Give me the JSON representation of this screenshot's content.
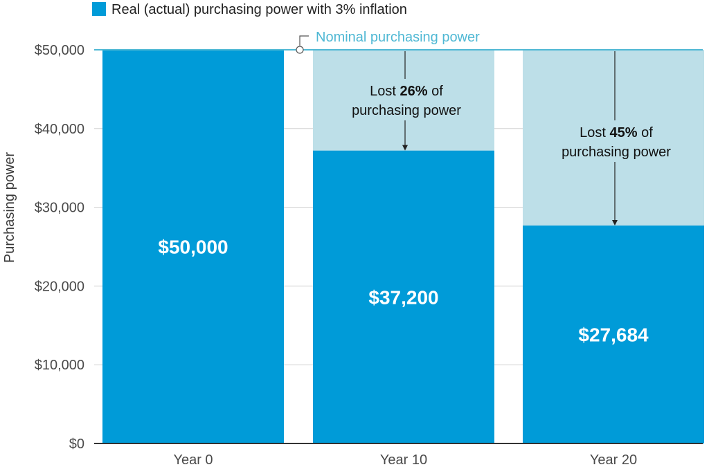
{
  "chart_data": {
    "type": "bar",
    "title": "",
    "ylabel": "Purchasing power",
    "xlabel": "",
    "ylim": [
      0,
      50000
    ],
    "yticks": [
      0,
      10000,
      20000,
      30000,
      40000,
      50000
    ],
    "ytick_labels": [
      "$0",
      "$10,000",
      "$20,000",
      "$30,000",
      "$40,000",
      "$50,000"
    ],
    "categories": [
      "Year 0",
      "Year 10",
      "Year 20"
    ],
    "series": [
      {
        "name": "Real (actual) purchasing power with 3% inflation",
        "values": [
          50000,
          37200,
          27684
        ]
      },
      {
        "name": "Nominal purchasing power",
        "values": [
          50000,
          50000,
          50000
        ]
      }
    ],
    "value_labels": [
      "$50,000",
      "$37,200",
      "$27,684"
    ],
    "legend": {
      "position": "top-left",
      "label": "Real (actual) purchasing power with 3% inflation"
    },
    "nominal_line": {
      "value": 50000,
      "label": "Nominal purchasing power"
    },
    "annotations": [
      {
        "category": "Year 10",
        "prefix": "Lost ",
        "percent": "26%",
        "suffix": " of",
        "line2": "purchasing power"
      },
      {
        "category": "Year 20",
        "prefix": "Lost ",
        "percent": "45%",
        "suffix": " of",
        "line2": "purchasing power"
      }
    ],
    "colors": {
      "real": "#009bd8",
      "lost": "#bddfe8",
      "nominal_line": "#4fb8d4",
      "grid": "#d0d0d0",
      "axis": "#333333"
    }
  }
}
